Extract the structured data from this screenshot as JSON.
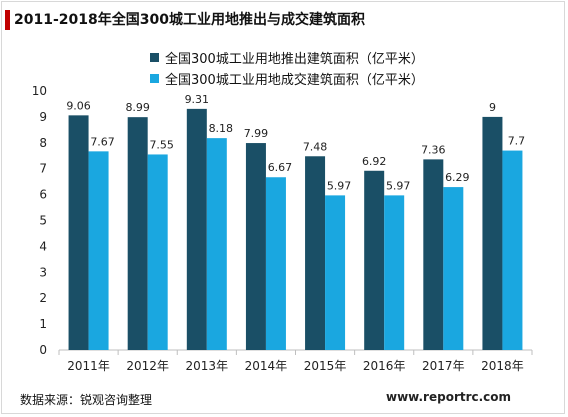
{
  "title": "2011-2018年全国300城工业用地推出与成交建筑面积",
  "source": "数据来源：锐观咨询整理",
  "watermark": "www.reportrc.com",
  "colors": {
    "series_1": "#1a4f66",
    "series_2": "#1aa7e0",
    "accent": "#c00000"
  },
  "chart_data": {
    "type": "bar",
    "title": "2011-2018年全国300城工业用地推出与成交建筑面积",
    "xlabel": "",
    "ylabel": "",
    "ylim": [
      0,
      10
    ],
    "yticks": [
      0,
      1,
      2,
      3,
      4,
      5,
      6,
      7,
      8,
      9,
      10
    ],
    "ytick_labels": [
      "0",
      "1",
      "2",
      "3",
      "4",
      "5",
      "6",
      "7",
      "8",
      "9",
      "10"
    ],
    "grid": false,
    "legend_position": "top",
    "categories": [
      "2011年",
      "2012年",
      "2013年",
      "2014年",
      "2015年",
      "2016年",
      "2017年",
      "2018年"
    ],
    "series": [
      {
        "name": "全国300城工业用地推出建筑面积（亿平米）",
        "values": [
          9.06,
          8.99,
          9.31,
          7.99,
          7.48,
          6.92,
          7.36,
          9
        ],
        "labels": [
          "9.06",
          "8.99",
          "9.31",
          "7.99",
          "7.48",
          "6.92",
          "7.36",
          "9"
        ]
      },
      {
        "name": "全国300城工业用地成交建筑面积（亿平米）",
        "values": [
          7.67,
          7.55,
          8.18,
          6.67,
          5.97,
          5.97,
          6.29,
          7.7
        ],
        "labels": [
          "7.67",
          "7.55",
          "8.18",
          "6.67",
          "5.97",
          "5.97",
          "6.29",
          "7.7"
        ]
      }
    ]
  }
}
